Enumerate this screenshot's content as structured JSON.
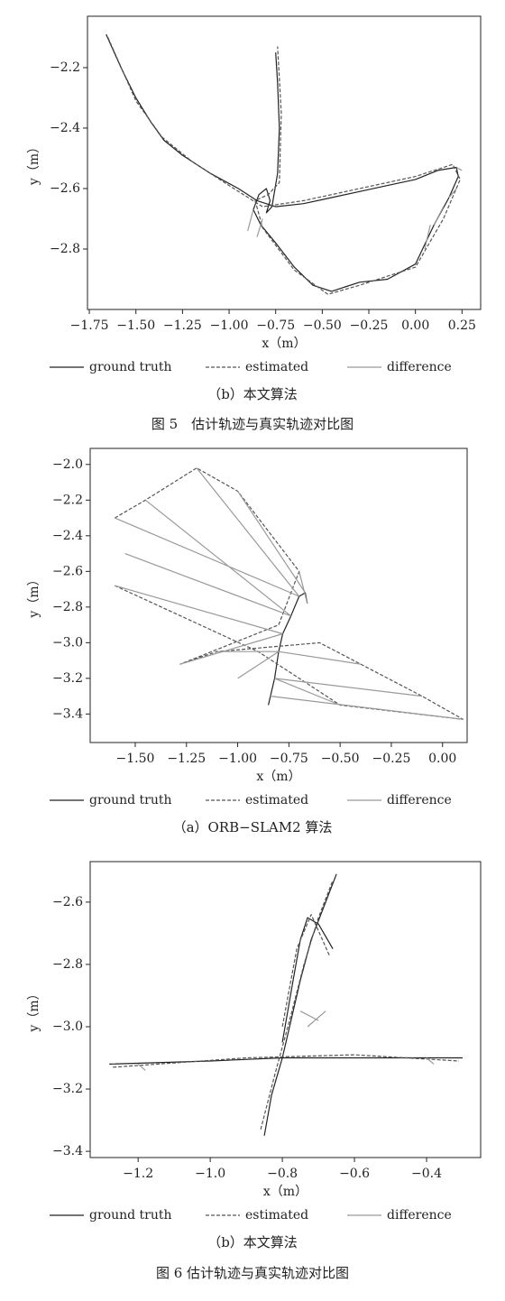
{
  "chart_data": [
    {
      "type": "line",
      "xlabel": "x（m）",
      "ylabel": "y（m）",
      "subcaption": "（b）本文算法",
      "xlim": [
        -1.76,
        0.35
      ],
      "ylim": [
        -3.0,
        -2.03
      ],
      "xticks": [
        {
          "value": -1.75,
          "label": "−1.75"
        },
        {
          "value": -1.5,
          "label": "−1.50"
        },
        {
          "value": -1.25,
          "label": "−1.25"
        },
        {
          "value": -1.0,
          "label": "−1.00"
        },
        {
          "value": -0.75,
          "label": "−0.75"
        },
        {
          "value": -0.5,
          "label": "−0.50"
        },
        {
          "value": -0.25,
          "label": "−0.25"
        },
        {
          "value": 0,
          "label": "0.00"
        },
        {
          "value": 0.25,
          "label": "0.25"
        }
      ],
      "yticks": [
        {
          "value": -2.2,
          "label": "−2.2"
        },
        {
          "value": -2.4,
          "label": "−2.4"
        },
        {
          "value": -2.6,
          "label": "−2.6"
        },
        {
          "value": -2.8,
          "label": "−2.8"
        }
      ],
      "series": [
        {
          "name": "ground truth",
          "color": "#222222",
          "linestyle": "solid",
          "x": [
            -1.66,
            -1.58,
            -1.5,
            -1.42,
            -1.35,
            -1.25,
            -1.1,
            -0.95,
            -0.85,
            -0.75,
            -0.6,
            -0.45,
            -0.3,
            -0.15,
            0.0,
            0.12,
            0.22,
            0.23,
            0.18,
            0.1,
            0.0,
            -0.15,
            -0.3,
            -0.45,
            -0.55,
            -0.65,
            -0.75,
            -0.83,
            -0.87,
            -0.84,
            -0.8,
            -0.78,
            -0.8,
            -0.77,
            -0.74,
            -0.73,
            -0.74,
            -0.75
          ],
          "y": [
            -2.09,
            -2.2,
            -2.3,
            -2.38,
            -2.44,
            -2.49,
            -2.55,
            -2.6,
            -2.64,
            -2.66,
            -2.65,
            -2.63,
            -2.61,
            -2.59,
            -2.57,
            -2.54,
            -2.53,
            -2.56,
            -2.63,
            -2.72,
            -2.85,
            -2.9,
            -2.91,
            -2.94,
            -2.92,
            -2.86,
            -2.78,
            -2.72,
            -2.67,
            -2.62,
            -2.6,
            -2.64,
            -2.68,
            -2.66,
            -2.55,
            -2.4,
            -2.25,
            -2.15
          ]
        },
        {
          "name": "estimated",
          "color": "#555555",
          "linestyle": "dashed",
          "x": [
            -1.65,
            -1.5,
            -1.36,
            -1.2,
            -1.0,
            -0.82,
            -0.6,
            -0.3,
            0.0,
            0.2,
            0.24,
            0.15,
            0.0,
            -0.3,
            -0.47,
            -0.65,
            -0.82,
            -0.86,
            -0.79,
            -0.73,
            -0.72,
            -0.74
          ],
          "y": [
            -2.1,
            -2.31,
            -2.43,
            -2.51,
            -2.59,
            -2.66,
            -2.64,
            -2.6,
            -2.56,
            -2.52,
            -2.57,
            -2.7,
            -2.86,
            -2.92,
            -2.95,
            -2.87,
            -2.73,
            -2.64,
            -2.62,
            -2.58,
            -2.35,
            -2.13
          ]
        },
        {
          "name": "difference",
          "color": "#999999",
          "linestyle": "solid",
          "x": [
            0.22,
            0.25,
            null,
            0.18,
            0.22,
            null,
            0.1,
            0.15,
            null,
            0.05,
            0.08,
            null,
            -0.87,
            -0.9,
            null,
            -0.82,
            -0.85
          ],
          "y": [
            -2.53,
            -2.54,
            null,
            -2.63,
            -2.6,
            null,
            -2.72,
            -2.66,
            null,
            -2.8,
            -2.72,
            null,
            -2.67,
            -2.74,
            null,
            -2.7,
            -2.76
          ]
        }
      ]
    },
    {
      "type": "line",
      "xlabel": "x（m）",
      "ylabel": "y（m）",
      "subcaption": "（a）ORB−SLAM2 算法",
      "xlim": [
        -1.72,
        0.12
      ],
      "ylim": [
        -3.56,
        -1.91
      ],
      "xticks": [
        {
          "value": -1.5,
          "label": "−1.50"
        },
        {
          "value": -1.25,
          "label": "−1.25"
        },
        {
          "value": -1.0,
          "label": "−1.00"
        },
        {
          "value": -0.75,
          "label": "−0.75"
        },
        {
          "value": -0.5,
          "label": "−0.50"
        },
        {
          "value": -0.25,
          "label": "−0.25"
        },
        {
          "value": 0,
          "label": "0.00"
        }
      ],
      "yticks": [
        {
          "value": -2.0,
          "label": "−2.0"
        },
        {
          "value": -2.2,
          "label": "−2.2"
        },
        {
          "value": -2.4,
          "label": "−2.4"
        },
        {
          "value": -2.6,
          "label": "−2.6"
        },
        {
          "value": -2.8,
          "label": "−2.8"
        },
        {
          "value": -3.0,
          "label": "−3.0"
        },
        {
          "value": -3.2,
          "label": "−3.2"
        },
        {
          "value": -3.4,
          "label": "−3.4"
        }
      ],
      "series": [
        {
          "name": "ground truth",
          "color": "#222222",
          "linestyle": "solid",
          "x": [
            -0.66,
            -0.67,
            -0.7,
            -0.74,
            -0.78,
            -0.8,
            -0.82,
            -0.84,
            -0.85
          ],
          "y": [
            -2.78,
            -2.72,
            -2.74,
            -2.85,
            -2.95,
            -3.05,
            -3.2,
            -3.3,
            -3.35
          ]
        },
        {
          "name": "estimated",
          "color": "#555555",
          "linestyle": "dashed",
          "x": [
            -1.6,
            -1.45,
            -1.2,
            -1.0,
            -0.7,
            -0.8,
            -1.28,
            -1.1,
            -0.6,
            -0.4,
            -0.1,
            0.1,
            -0.5,
            -0.9,
            -1.6
          ],
          "y": [
            -2.3,
            -2.2,
            -2.02,
            -2.15,
            -2.6,
            -2.9,
            -3.12,
            -3.05,
            -3.0,
            -3.12,
            -3.3,
            -3.43,
            -3.35,
            -3.05,
            -2.68
          ]
        },
        {
          "name": "difference",
          "color": "#999999",
          "linestyle": "solid",
          "x": [
            -0.7,
            -1.6,
            null,
            -0.74,
            -1.45,
            null,
            -0.7,
            -1.2,
            null,
            -0.67,
            -1.0,
            null,
            -0.66,
            -0.7,
            null,
            -0.78,
            -1.28,
            null,
            -0.8,
            -1.1,
            null,
            -0.8,
            -0.4,
            null,
            -0.82,
            -0.1,
            null,
            -0.84,
            0.1,
            null,
            -0.82,
            -0.5,
            null,
            -0.78,
            -1.6,
            null,
            -0.74,
            -1.55,
            null,
            -0.8,
            -1.0
          ],
          "y": [
            -2.74,
            -2.3,
            null,
            -2.85,
            -2.2,
            null,
            -2.74,
            -2.02,
            null,
            -2.72,
            -2.15,
            null,
            -2.78,
            -2.6,
            null,
            -2.95,
            -3.12,
            null,
            -3.05,
            -3.05,
            null,
            -3.05,
            -3.12,
            null,
            -3.2,
            -3.3,
            null,
            -3.3,
            -3.43,
            null,
            -3.2,
            -3.35,
            null,
            -2.95,
            -2.68,
            null,
            -2.85,
            -2.5,
            null,
            -3.05,
            -3.2
          ]
        }
      ]
    },
    {
      "type": "line",
      "xlabel": "x（m）",
      "ylabel": "y（m）",
      "subcaption": "（b）本文算法",
      "xlim": [
        -1.333,
        -0.25
      ],
      "ylim": [
        -3.42,
        -2.47
      ],
      "xticks": [
        {
          "value": -1.2,
          "label": "−1.2"
        },
        {
          "value": -1.0,
          "label": "−1.0"
        },
        {
          "value": -0.8,
          "label": "−0.8"
        },
        {
          "value": -0.6,
          "label": "−0.6"
        },
        {
          "value": -0.4,
          "label": "−0.4"
        }
      ],
      "yticks": [
        {
          "value": -2.6,
          "label": "−2.6"
        },
        {
          "value": -2.8,
          "label": "−2.8"
        },
        {
          "value": -3.0,
          "label": "−3.0"
        },
        {
          "value": -3.2,
          "label": "−3.2"
        },
        {
          "value": -3.4,
          "label": "−3.4"
        }
      ],
      "series": [
        {
          "name": "ground truth",
          "color": "#222222",
          "linestyle": "solid",
          "x": [
            -0.85,
            -0.83,
            -0.8,
            -0.78,
            -0.75,
            -0.72,
            -0.68,
            -0.65,
            null,
            -1.28,
            -1.0,
            -0.8,
            -0.6,
            -0.3,
            null,
            -0.66,
            -0.7,
            -0.73,
            -0.75,
            -0.77,
            -0.8
          ],
          "y": [
            -3.35,
            -3.22,
            -3.1,
            -3.0,
            -2.85,
            -2.72,
            -2.6,
            -2.51,
            null,
            -3.12,
            -3.11,
            -3.1,
            -3.1,
            -3.1,
            null,
            -2.75,
            -2.67,
            -2.65,
            -2.72,
            -2.85,
            -3.05
          ]
        },
        {
          "name": "estimated",
          "color": "#555555",
          "linestyle": "dashed",
          "x": [
            -0.86,
            -0.82,
            -0.78,
            -0.74,
            -0.7,
            -0.66,
            null,
            -1.27,
            -0.9,
            -0.6,
            -0.31,
            null,
            -0.67,
            -0.72,
            -0.76,
            -0.8
          ],
          "y": [
            -3.33,
            -3.15,
            -2.98,
            -2.8,
            -2.65,
            -2.53,
            null,
            -3.13,
            -3.1,
            -3.09,
            -3.11,
            null,
            -2.77,
            -2.64,
            -2.75,
            -3.0
          ]
        },
        {
          "name": "difference",
          "color": "#999999",
          "linestyle": "solid",
          "x": [
            -0.75,
            -0.7,
            null,
            -0.73,
            -0.68,
            null,
            -1.2,
            -1.18,
            null,
            -0.4,
            -0.38
          ],
          "y": [
            -2.95,
            -2.98,
            null,
            -3.0,
            -2.95,
            null,
            -3.12,
            -3.14,
            null,
            -3.1,
            -3.12
          ]
        }
      ]
    }
  ],
  "figure_captions": [
    "图 5　估计轨迹与真实轨迹对比图",
    "图 6 估计轨迹与真实轨迹对比图"
  ]
}
